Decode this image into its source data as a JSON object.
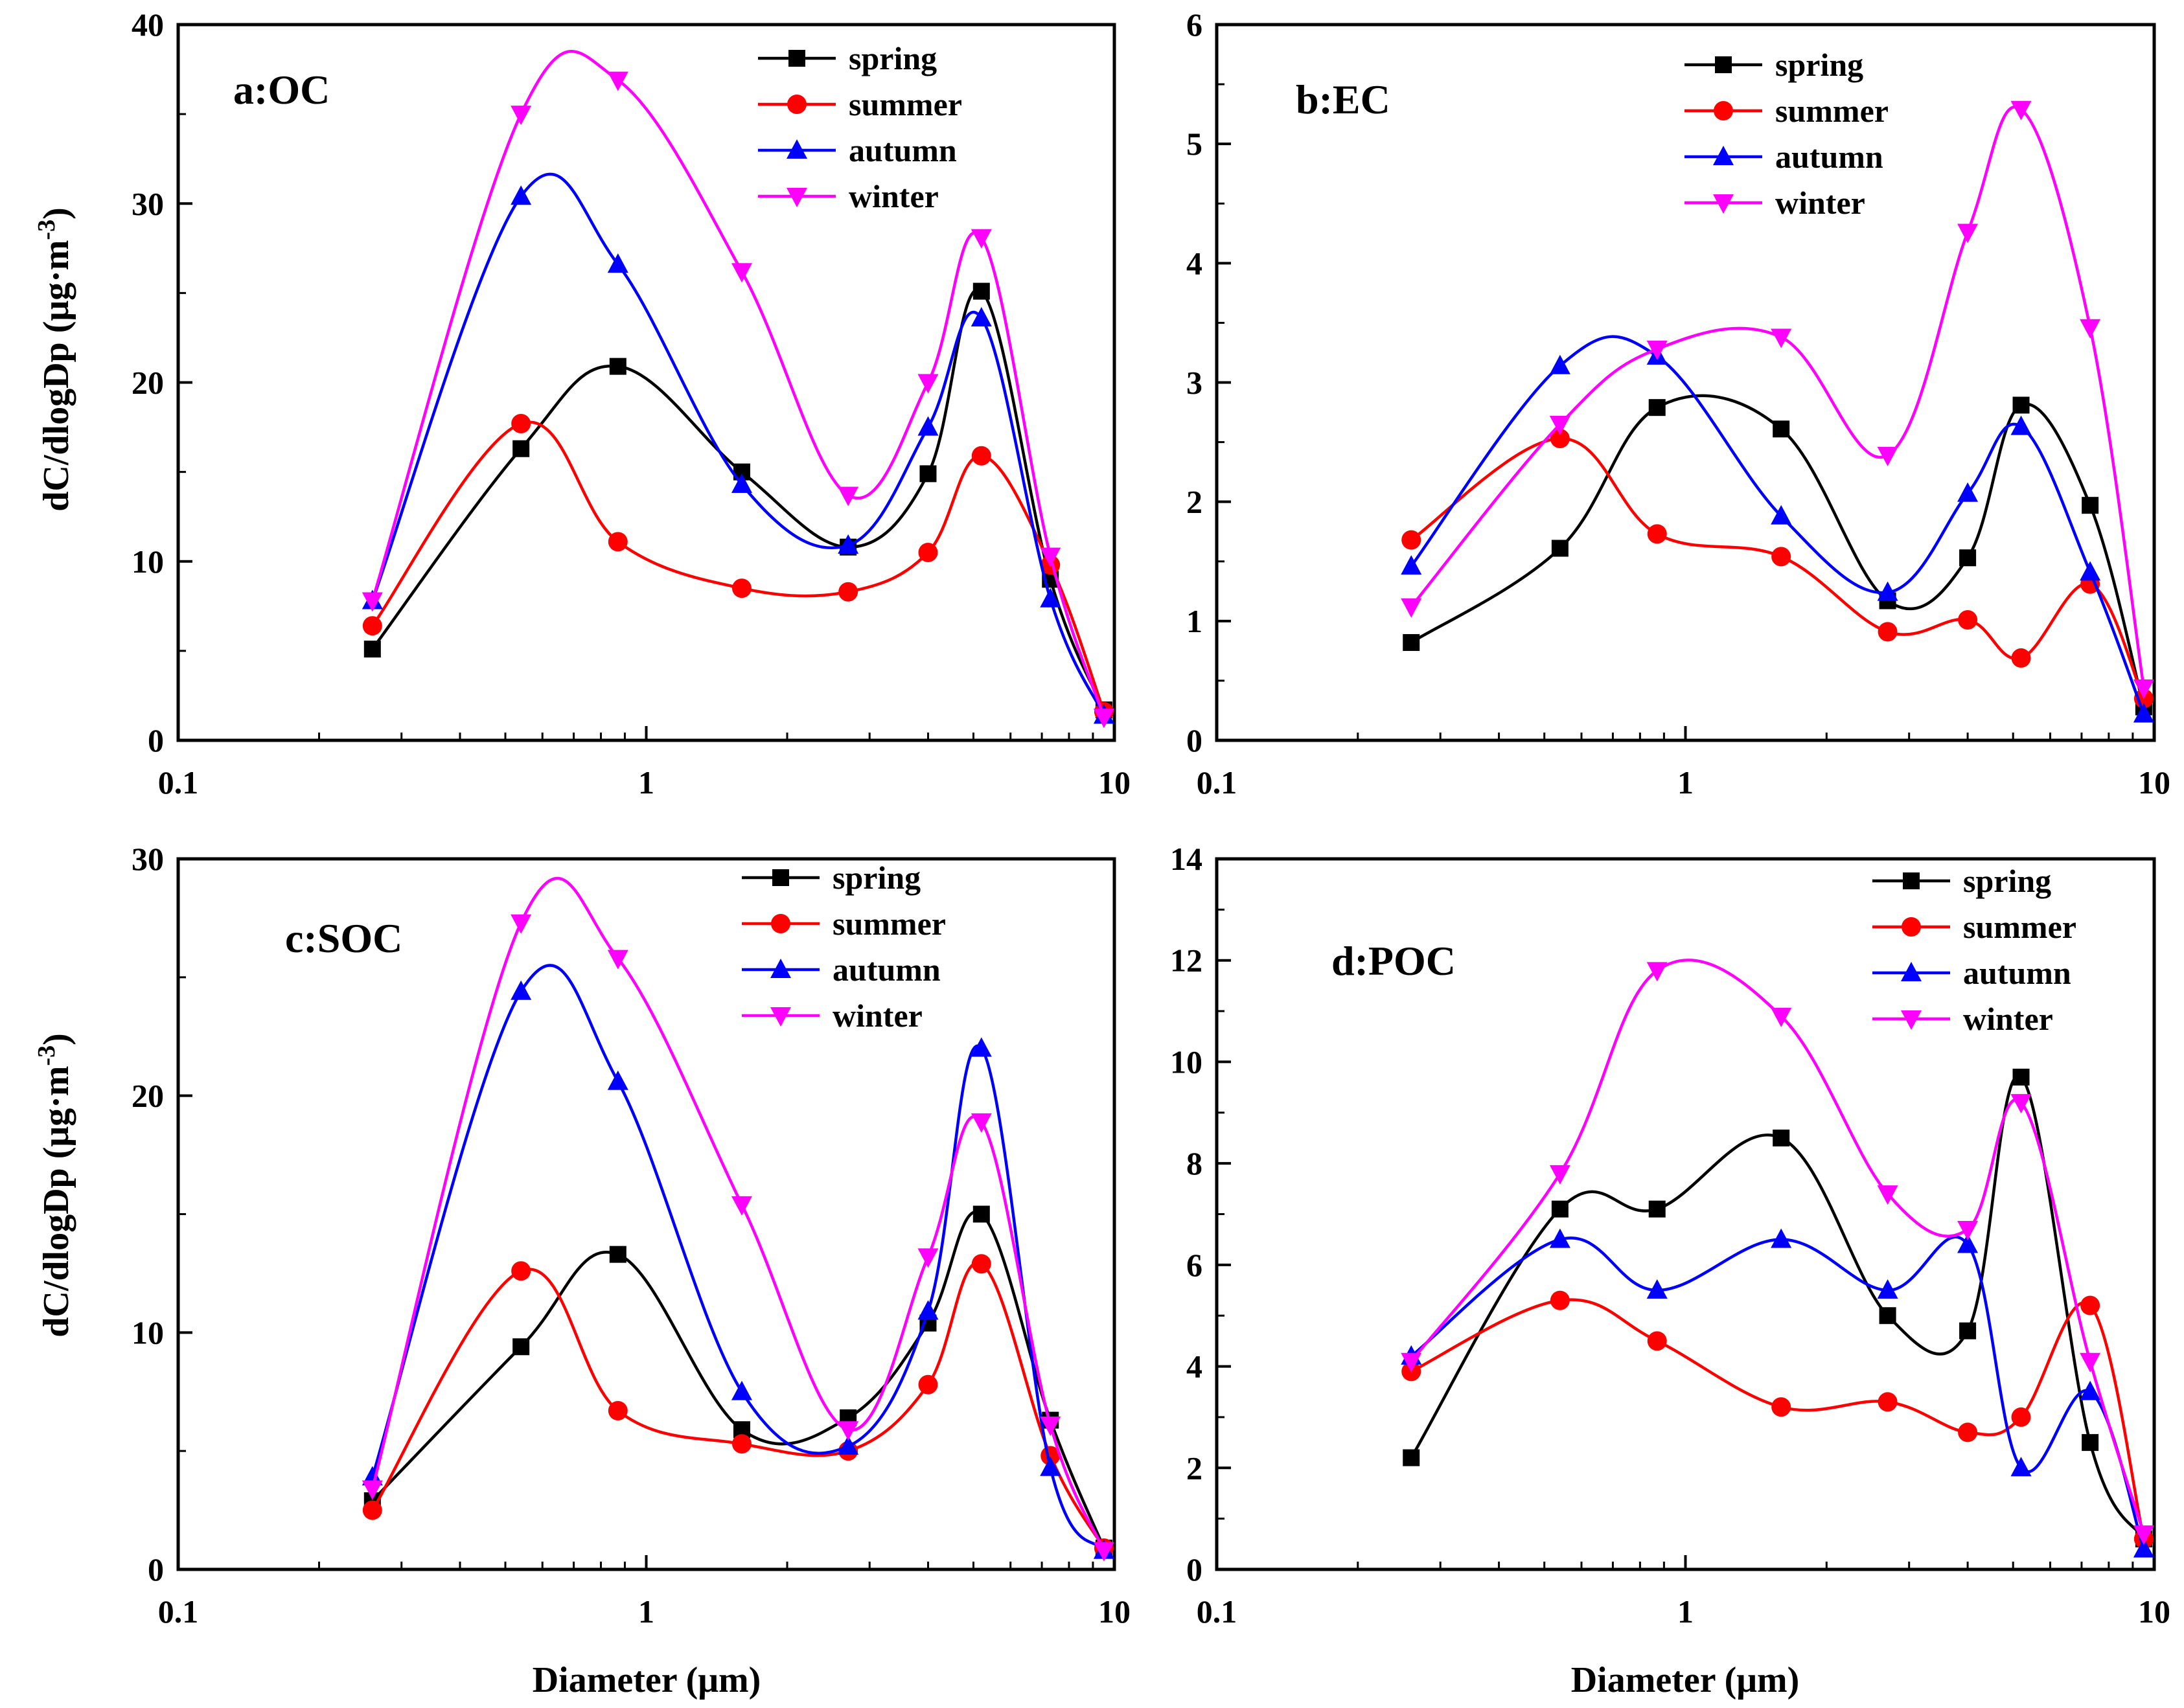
{
  "figure": {
    "x_axis_title": "Diameter (μm)",
    "y_axis_title_main": "dC/dlogDp (μg·m",
    "y_axis_title_sup": "-3",
    "y_axis_title_close": ")"
  },
  "chart_data": [
    {
      "type": "line",
      "label": "a:OC",
      "x_scale": "log",
      "xlim": [
        0.1,
        10
      ],
      "xticks": [
        "0.1",
        "1",
        "10"
      ],
      "ylim": [
        0,
        40
      ],
      "yticks": [
        "0",
        "10",
        "20",
        "30",
        "40"
      ],
      "legend_position": "top-right",
      "x": [
        0.26,
        0.54,
        0.87,
        1.6,
        2.7,
        4.0,
        5.2,
        7.3,
        9.5
      ],
      "series": [
        {
          "name": "spring",
          "color": "#000000",
          "marker": "square",
          "values": [
            5.1,
            16.3,
            20.9,
            15.0,
            10.8,
            14.9,
            25.1,
            9.0,
            1.7
          ]
        },
        {
          "name": "summer",
          "color": "#ff0000",
          "marker": "circle",
          "values": [
            6.4,
            17.7,
            11.1,
            8.5,
            8.3,
            10.5,
            15.9,
            9.8,
            1.6
          ]
        },
        {
          "name": "autumn",
          "color": "#0000ff",
          "marker": "triangle-up",
          "values": [
            7.8,
            30.4,
            26.6,
            14.3,
            10.9,
            17.5,
            23.6,
            7.9,
            1.4
          ]
        },
        {
          "name": "winter",
          "color": "#ff00ff",
          "marker": "triangle-down",
          "values": [
            7.8,
            35.0,
            36.9,
            26.2,
            13.7,
            20.0,
            28.1,
            10.3,
            1.3
          ]
        }
      ]
    },
    {
      "type": "line",
      "label": "b:EC",
      "x_scale": "log",
      "xlim": [
        0.1,
        10
      ],
      "xticks": [
        "0.1",
        "1",
        "10"
      ],
      "ylim": [
        0,
        6
      ],
      "yticks": [
        "0",
        "1",
        "2",
        "3",
        "4",
        "5",
        "6"
      ],
      "legend_position": "top-right",
      "x": [
        0.26,
        0.54,
        0.87,
        1.6,
        2.7,
        4.0,
        5.2,
        7.3,
        9.5
      ],
      "series": [
        {
          "name": "spring",
          "color": "#000000",
          "marker": "square",
          "values": [
            0.82,
            1.61,
            2.79,
            2.61,
            1.17,
            1.53,
            2.81,
            1.97,
            0.28
          ]
        },
        {
          "name": "summer",
          "color": "#ff0000",
          "marker": "circle",
          "values": [
            1.68,
            2.53,
            1.73,
            1.54,
            0.91,
            1.01,
            0.69,
            1.31,
            0.35
          ]
        },
        {
          "name": "autumn",
          "color": "#0000ff",
          "marker": "triangle-up",
          "values": [
            1.46,
            3.14,
            3.22,
            1.88,
            1.24,
            2.07,
            2.63,
            1.41,
            0.22
          ]
        },
        {
          "name": "winter",
          "color": "#ff00ff",
          "marker": "triangle-down",
          "values": [
            1.12,
            2.65,
            3.28,
            3.38,
            2.39,
            4.26,
            5.29,
            3.46,
            0.44
          ]
        }
      ]
    },
    {
      "type": "line",
      "label": "c:SOC",
      "x_scale": "log",
      "xlim": [
        0.1,
        10
      ],
      "xticks": [
        "0.1",
        "1",
        "10"
      ],
      "ylim": [
        0,
        30
      ],
      "yticks": [
        "0",
        "10",
        "20",
        "30"
      ],
      "legend_position": "top-right",
      "x": [
        0.26,
        0.54,
        0.87,
        1.6,
        2.7,
        4.0,
        5.2,
        7.3,
        9.5
      ],
      "series": [
        {
          "name": "spring",
          "color": "#000000",
          "marker": "square",
          "values": [
            2.9,
            9.4,
            13.3,
            5.9,
            6.4,
            10.4,
            15.0,
            6.3,
            0.9
          ]
        },
        {
          "name": "summer",
          "color": "#ff0000",
          "marker": "circle",
          "values": [
            2.5,
            12.6,
            6.7,
            5.3,
            5.0,
            7.8,
            12.9,
            4.8,
            0.9
          ]
        },
        {
          "name": "autumn",
          "color": "#0000ff",
          "marker": "triangle-up",
          "values": [
            3.9,
            24.4,
            20.6,
            7.5,
            5.2,
            10.9,
            22.0,
            4.3,
            0.8
          ]
        },
        {
          "name": "winter",
          "color": "#ff00ff",
          "marker": "triangle-down",
          "values": [
            3.4,
            27.3,
            25.8,
            15.4,
            5.9,
            13.2,
            18.9,
            6.1,
            0.8
          ]
        }
      ]
    },
    {
      "type": "line",
      "label": "d:POC",
      "x_scale": "log",
      "xlim": [
        0.1,
        10
      ],
      "xticks": [
        "0.1",
        "1",
        "10"
      ],
      "ylim": [
        0,
        14
      ],
      "yticks": [
        "0",
        "2",
        "4",
        "6",
        "8",
        "10",
        "12",
        "14"
      ],
      "legend_position": "top-right",
      "x": [
        0.26,
        0.54,
        0.87,
        1.6,
        2.7,
        4.0,
        5.2,
        7.3,
        9.5
      ],
      "series": [
        {
          "name": "spring",
          "color": "#000000",
          "marker": "square",
          "values": [
            2.2,
            7.1,
            7.1,
            8.5,
            5.0,
            4.7,
            9.7,
            2.5,
            0.6
          ]
        },
        {
          "name": "summer",
          "color": "#ff0000",
          "marker": "circle",
          "values": [
            3.9,
            5.3,
            4.5,
            3.2,
            3.3,
            2.7,
            3.0,
            5.2,
            0.6
          ]
        },
        {
          "name": "autumn",
          "color": "#0000ff",
          "marker": "triangle-up",
          "values": [
            4.2,
            6.5,
            5.5,
            6.5,
            5.5,
            6.4,
            2.0,
            3.5,
            0.4
          ]
        },
        {
          "name": "winter",
          "color": "#ff00ff",
          "marker": "triangle-down",
          "values": [
            4.1,
            7.8,
            11.8,
            10.9,
            7.4,
            6.7,
            9.2,
            4.1,
            0.7
          ]
        }
      ]
    }
  ]
}
